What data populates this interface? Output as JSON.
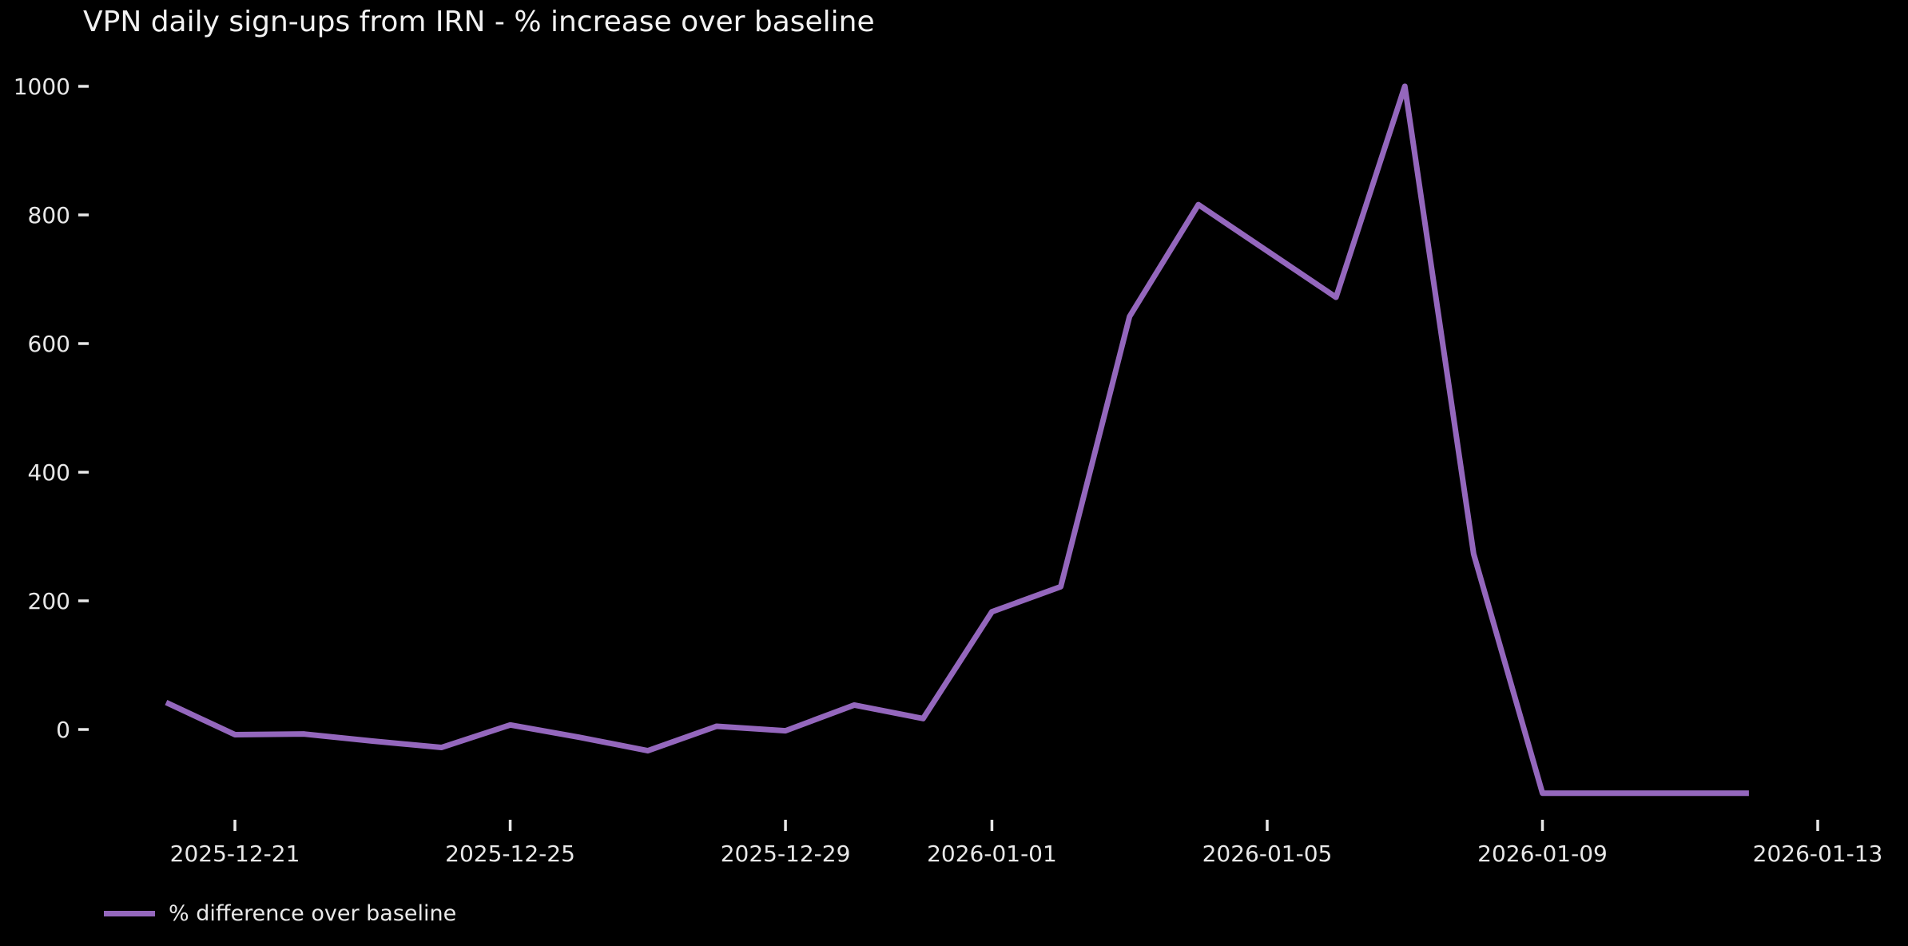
{
  "chart": {
    "title": "VPN daily sign-ups from IRN - % increase over baseline",
    "legend_label": "% difference over baseline",
    "background_color": "#000000",
    "text_color": "#e8e8e8",
    "line_color": "#9467bd"
  },
  "chart_data": {
    "type": "line",
    "title": "VPN daily sign-ups from IRN - % increase over baseline",
    "xlabel": "",
    "ylabel": "",
    "x": [
      "2025-12-20",
      "2025-12-21",
      "2025-12-22",
      "2025-12-23",
      "2025-12-24",
      "2025-12-25",
      "2025-12-26",
      "2025-12-27",
      "2025-12-28",
      "2025-12-29",
      "2025-12-30",
      "2025-12-31",
      "2026-01-01",
      "2026-01-02",
      "2026-01-03",
      "2026-01-04",
      "2026-01-05",
      "2026-01-06",
      "2026-01-07",
      "2026-01-08",
      "2026-01-09",
      "2026-01-10",
      "2026-01-11",
      "2026-01-12"
    ],
    "series": [
      {
        "name": "% difference over baseline",
        "values": [
          42,
          -8,
          -7,
          -18,
          -28,
          7,
          -12,
          -33,
          5,
          -2,
          38,
          17,
          183,
          222,
          642,
          816,
          744,
          672,
          1000,
          273,
          -99,
          -99,
          -99,
          -99
        ]
      }
    ],
    "yticks": [
      0,
      200,
      400,
      600,
      800,
      1000
    ],
    "xticklabels": [
      "2025-12-21",
      "2025-12-25",
      "2025-12-29",
      "2026-01-01",
      "2026-01-05",
      "2026-01-09",
      "2026-01-13"
    ],
    "ylim": [
      -120,
      1060
    ],
    "grid": false,
    "legend_position": "lower-left",
    "line_color": "#9467bd",
    "background": "#000000"
  }
}
